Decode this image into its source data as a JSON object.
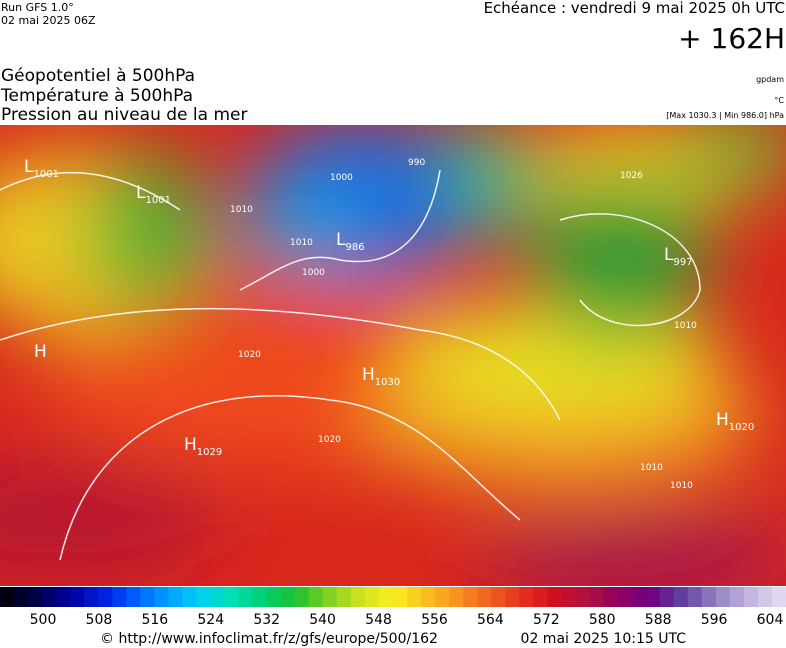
{
  "header": {
    "run": "Run GFS 1.0°",
    "run_date": "02 mai 2025 06Z",
    "echeance": "Echéance : vendredi 9 mai 2025 0h UTC",
    "lead": "+ 162H"
  },
  "titles": [
    "Géopotentiel à 500hPa",
    "Température à 500hPa",
    "Pression au niveau de la mer"
  ],
  "units": {
    "geopotential": "gpdam",
    "temperature": "°C",
    "pressure": "[Max 1030.3 | Min 986.0] hPa"
  },
  "centers": [
    {
      "letter": "L",
      "value": "1001"
    },
    {
      "letter": "L",
      "value": "1001"
    },
    {
      "letter": "L",
      "value": "986"
    },
    {
      "letter": "L",
      "value": "997"
    },
    {
      "letter": "H",
      "value": "1030"
    },
    {
      "letter": "H",
      "value": "1029"
    },
    {
      "letter": "H",
      "value": "1020"
    },
    {
      "letter": "H"
    }
  ],
  "isobar_labels": [
    "990",
    "1000",
    "1000",
    "1010",
    "1010",
    "1020",
    "1020",
    "1026",
    "1010",
    "1010",
    "1010"
  ],
  "colorbar": {
    "ticks": [
      500,
      508,
      516,
      524,
      532,
      540,
      548,
      556,
      564,
      572,
      580,
      588,
      596,
      604
    ]
  },
  "footer": {
    "source": "© http://www.infoclimat.fr/z/gfs/europe/500/162",
    "generated": "02 mai 2025 10:15 UTC"
  }
}
